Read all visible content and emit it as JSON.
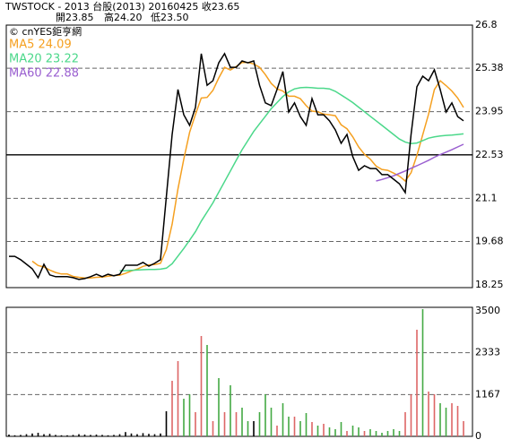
{
  "chart_data": [
    {
      "type": "line",
      "header": "TWSTOCK  - 2013  台股(2013) 20160425  收23.65",
      "open": "開23.85",
      "high": "高24.20",
      "low": "低23.50",
      "source": "© cnYES鉅亨網",
      "ylim": [
        18.25,
        26.8
      ],
      "yticks": [
        26.8,
        25.38,
        23.95,
        22.53,
        21.1,
        19.68,
        18.25
      ],
      "grid_styles": [
        "none",
        "dashed",
        "dashed",
        "solid",
        "dashed",
        "dashed",
        "none"
      ],
      "series": [
        {
          "name": "Close",
          "color": "#000000",
          "values": [
            19.19,
            19.19,
            19.08,
            18.93,
            18.78,
            18.49,
            18.93,
            18.58,
            18.52,
            18.52,
            18.52,
            18.49,
            18.43,
            18.46,
            18.52,
            18.6,
            18.52,
            18.6,
            18.55,
            18.6,
            18.9,
            18.9,
            18.9,
            18.99,
            18.87,
            18.96,
            19.08,
            21.14,
            23.2,
            24.68,
            23.85,
            23.5,
            24.09,
            25.86,
            24.82,
            24.97,
            25.56,
            25.86,
            25.41,
            25.41,
            25.62,
            25.56,
            25.62,
            24.82,
            24.24,
            24.15,
            24.68,
            25.27,
            23.94,
            24.24,
            23.79,
            23.5,
            24.38,
            23.85,
            23.85,
            23.65,
            23.35,
            22.91,
            23.2,
            22.47,
            22.02,
            22.17,
            22.08,
            22.08,
            21.88,
            21.88,
            21.73,
            21.58,
            21.29,
            23.2,
            24.77,
            25.12,
            24.97,
            25.33,
            24.68,
            23.94,
            24.24,
            23.79,
            23.65
          ]
        },
        {
          "name": "MA5 24.09",
          "color": "#f5a020",
          "values": [
            null,
            null,
            null,
            null,
            19.03,
            18.89,
            18.84,
            18.74,
            18.66,
            18.61,
            18.61,
            18.53,
            18.5,
            18.48,
            18.48,
            18.5,
            18.51,
            18.54,
            18.56,
            18.57,
            18.63,
            18.71,
            18.77,
            18.86,
            18.91,
            18.92,
            18.96,
            19.41,
            20.25,
            21.41,
            22.39,
            23.27,
            23.86,
            24.4,
            24.42,
            24.65,
            25.06,
            25.41,
            25.32,
            25.44,
            25.57,
            25.57,
            25.52,
            25.41,
            25.17,
            24.88,
            24.7,
            24.63,
            24.46,
            24.46,
            24.38,
            24.15,
            23.97,
            23.95,
            23.87,
            23.85,
            23.82,
            23.52,
            23.39,
            23.12,
            22.79,
            22.55,
            22.39,
            22.16,
            22.05,
            22.02,
            21.93,
            21.83,
            21.67,
            21.94,
            22.51,
            23.19,
            23.87,
            24.68,
            24.97,
            24.81,
            24.63,
            24.4,
            24.09
          ]
        },
        {
          "name": "MA20 23.22",
          "color": "#4bd88a",
          "values": [
            null,
            null,
            null,
            null,
            null,
            null,
            null,
            null,
            null,
            null,
            null,
            null,
            null,
            null,
            null,
            null,
            null,
            null,
            null,
            18.72,
            18.72,
            18.73,
            18.74,
            18.75,
            18.76,
            18.76,
            18.77,
            18.8,
            18.95,
            19.2,
            19.45,
            19.72,
            20.0,
            20.35,
            20.65,
            20.95,
            21.3,
            21.65,
            22.0,
            22.35,
            22.7,
            23.0,
            23.3,
            23.55,
            23.8,
            24.05,
            24.25,
            24.45,
            24.6,
            24.7,
            24.74,
            24.75,
            24.74,
            24.72,
            24.72,
            24.7,
            24.62,
            24.5,
            24.38,
            24.25,
            24.1,
            23.95,
            23.8,
            23.65,
            23.5,
            23.35,
            23.2,
            23.05,
            22.95,
            22.9,
            22.92,
            23.0,
            23.08,
            23.12,
            23.15,
            23.17,
            23.18,
            23.2,
            23.22
          ]
        },
        {
          "name": "MA60 22.88",
          "color": "#9a5fd0",
          "values": [
            null,
            null,
            null,
            null,
            null,
            null,
            null,
            null,
            null,
            null,
            null,
            null,
            null,
            null,
            null,
            null,
            null,
            null,
            null,
            null,
            null,
            null,
            null,
            null,
            null,
            null,
            null,
            null,
            null,
            null,
            null,
            null,
            null,
            null,
            null,
            null,
            null,
            null,
            null,
            null,
            null,
            null,
            null,
            null,
            null,
            null,
            null,
            null,
            null,
            null,
            null,
            null,
            null,
            null,
            null,
            null,
            null,
            null,
            null,
            null,
            null,
            null,
            null,
            21.67,
            21.72,
            21.78,
            21.84,
            21.92,
            22.0,
            22.09,
            22.17,
            22.26,
            22.35,
            22.45,
            22.54,
            22.62,
            22.7,
            22.79,
            22.88
          ]
        }
      ]
    },
    {
      "type": "bar",
      "ylim": [
        0,
        3500
      ],
      "yticks": [
        0,
        1167,
        2333,
        3500
      ],
      "grid_styles": [
        "none",
        "dashed",
        "dashed",
        "none"
      ],
      "values": [
        50,
        30,
        40,
        60,
        80,
        100,
        60,
        70,
        40,
        30,
        30,
        40,
        60,
        50,
        40,
        50,
        40,
        30,
        40,
        60,
        120,
        80,
        60,
        90,
        70,
        60,
        80,
        700,
        1550,
        2100,
        1050,
        1175,
        675,
        2800,
        2550,
        425,
        1625,
        675,
        1425,
        675,
        800,
        425,
        425,
        675,
        1175,
        800,
        300,
        925,
        550,
        550,
        425,
        650,
        400,
        300,
        350,
        250,
        200,
        400,
        150,
        300,
        250,
        150,
        200,
        150,
        100,
        150,
        200,
        150,
        675,
        1175,
        2975,
        3550,
        1250,
        1175,
        925,
        800,
        925,
        850,
        425
      ],
      "colors": [
        "#000",
        "#000",
        "#000",
        "#000",
        "#000",
        "#000",
        "#000",
        "#000",
        "#000",
        "#000",
        "#000",
        "#000",
        "#000",
        "#000",
        "#000",
        "#000",
        "#000",
        "#000",
        "#000",
        "#000",
        "#000",
        "#000",
        "#000",
        "#000",
        "#000",
        "#000",
        "#000",
        "#000",
        "#d66",
        "#d66",
        "#4a4",
        "#4a4",
        "#d66",
        "#d66",
        "#4a4",
        "#d66",
        "#4a4",
        "#d66",
        "#4a4",
        "#d66",
        "#4a4",
        "#4a4",
        "#000",
        "#4a4",
        "#4a4",
        "#4a4",
        "#d66",
        "#4a4",
        "#4a4",
        "#d66",
        "#4a4",
        "#4a4",
        "#d66",
        "#4a4",
        "#d66",
        "#4a4",
        "#4a4",
        "#4a4",
        "#d66",
        "#4a4",
        "#4a4",
        "#d66",
        "#4a4",
        "#4a4",
        "#4a4",
        "#4a4",
        "#4a4",
        "#4a4",
        "#d66",
        "#d66",
        "#d66",
        "#4a4",
        "#d66",
        "#d66",
        "#4a4",
        "#4a4",
        "#d66",
        "#d66",
        "#d66"
      ]
    }
  ]
}
